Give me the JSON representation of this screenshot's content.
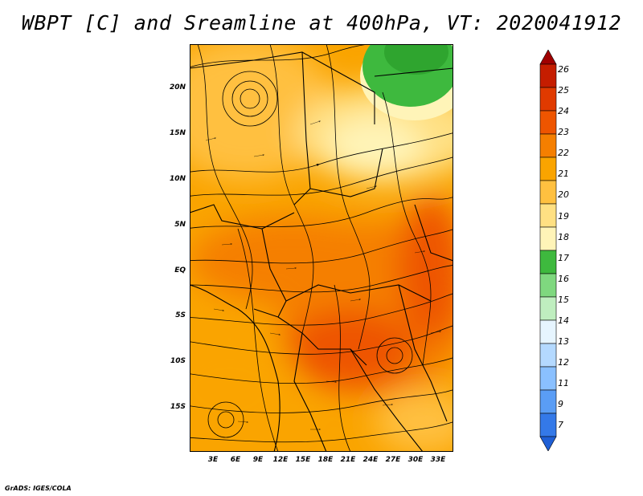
{
  "title": "WBPT [C] and Sreamline at 400hPa, VT: 2020041912",
  "credit": "GrADS: IGES/COLA",
  "lat_labels": [
    "20N",
    "15N",
    "10N",
    "5N",
    "EQ",
    "5S",
    "10S",
    "15S"
  ],
  "lon_labels": [
    "3E",
    "6E",
    "9E",
    "12E",
    "15E",
    "18E",
    "21E",
    "24E",
    "27E",
    "30E",
    "33E"
  ],
  "colorbar": {
    "labels": [
      "26",
      "25",
      "24",
      "23",
      "22",
      "21",
      "20",
      "19",
      "18",
      "17",
      "16",
      "15",
      "14",
      "13",
      "12",
      "11",
      "9",
      "7"
    ],
    "colors": [
      "#a00000",
      "#c51d00",
      "#e03a00",
      "#ee5500",
      "#f57f00",
      "#faa400",
      "#ffc040",
      "#ffe083",
      "#fff4b8",
      "#3eb93e",
      "#7fd87f",
      "#bfeebf",
      "#e6f5ff",
      "#b4d9ff",
      "#8ac0ff",
      "#5a9df5",
      "#3479e8",
      "#1f5fd5"
    ]
  }
}
